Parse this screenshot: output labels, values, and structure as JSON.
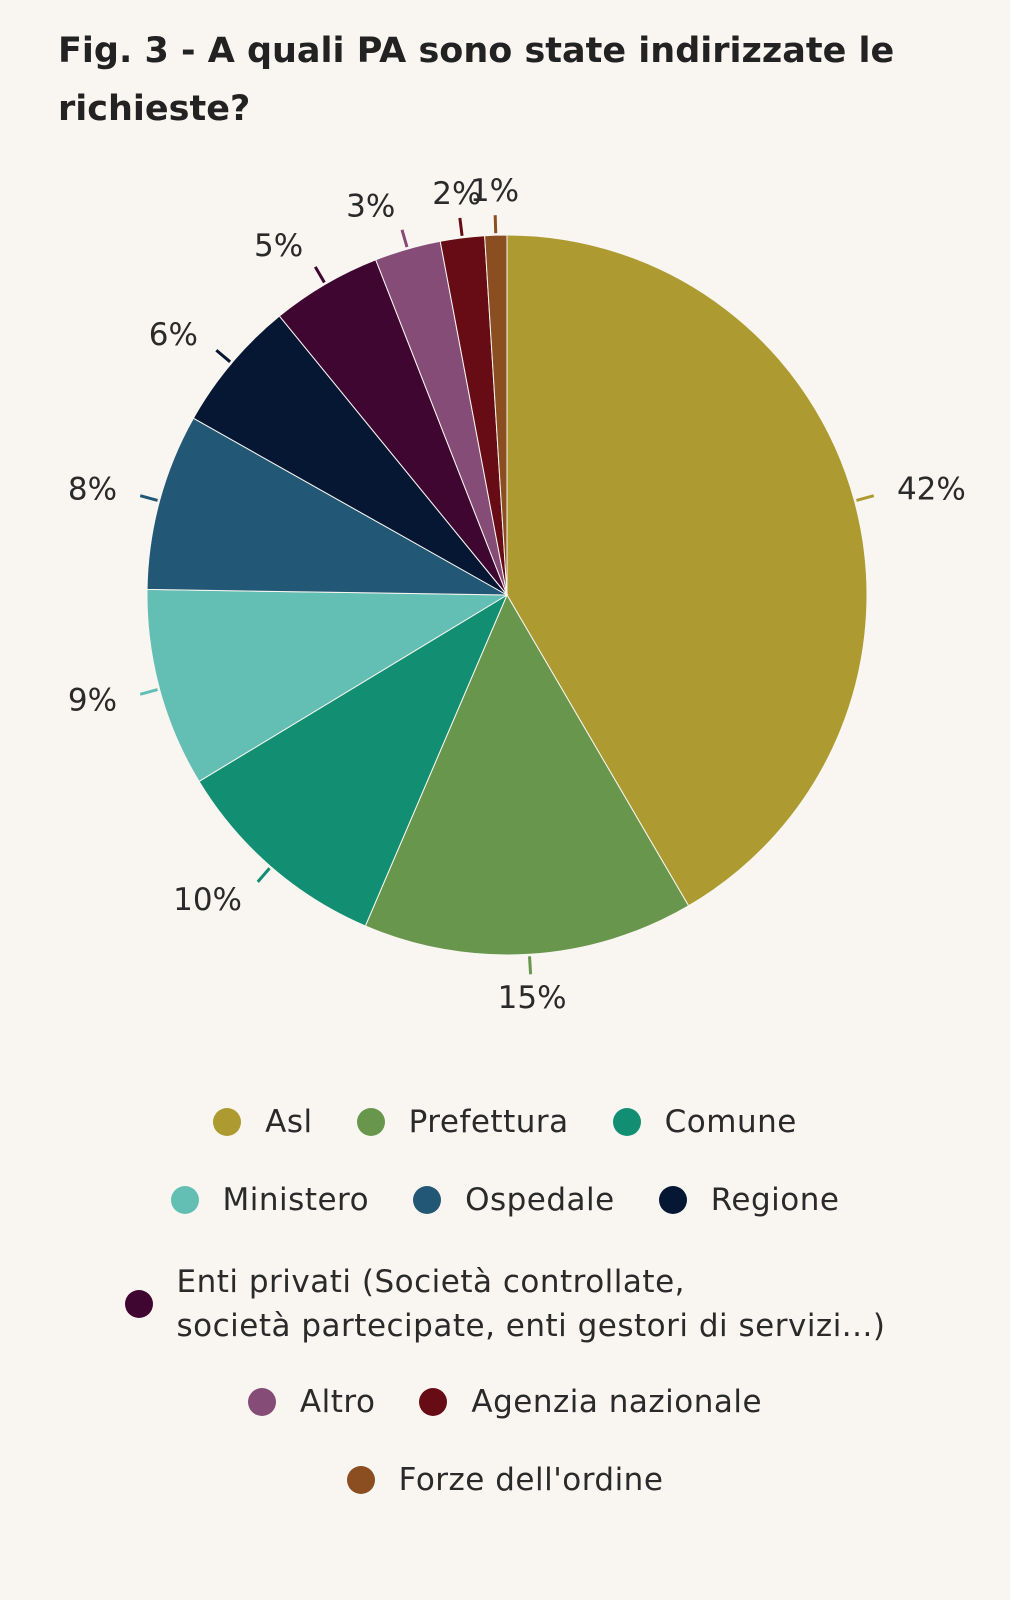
{
  "title": "Fig. 3 - A quali PA sono state indirizzate le richieste?",
  "chart_data": {
    "type": "pie",
    "title": "Fig. 3 - A quali PA sono state indirizzate le richieste?",
    "legend_position": "bottom",
    "slices": [
      {
        "name": "Asl",
        "value": 42,
        "label": "42%",
        "color": "#ad9a30"
      },
      {
        "name": "Prefettura",
        "value": 15,
        "label": "15%",
        "color": "#69964d"
      },
      {
        "name": "Comune",
        "value": 10,
        "label": "10%",
        "color": "#128f73"
      },
      {
        "name": "Ministero",
        "value": 9,
        "label": "9%",
        "color": "#63bfb3"
      },
      {
        "name": "Ospedale",
        "value": 8,
        "label": "8%",
        "color": "#225775"
      },
      {
        "name": "Regione",
        "value": 6,
        "label": "6%",
        "color": "#061733"
      },
      {
        "name": "Enti privati (Società controllate, società partecipate, enti gestori di servizi...)",
        "value": 5,
        "label": "5%",
        "color": "#3f0632"
      },
      {
        "name": "Altro",
        "value": 3,
        "label": "3%",
        "color": "#854c77"
      },
      {
        "name": "Agenzia nazionale",
        "value": 2,
        "label": "2%",
        "color": "#670c15"
      },
      {
        "name": "Forze dell'ordine",
        "value": 1,
        "label": "1%",
        "color": "#8a4e21"
      }
    ]
  },
  "legend": {
    "rows": [
      [
        "Asl",
        "Prefettura",
        "Comune"
      ],
      [
        "Ministero",
        "Ospedale",
        "Regione"
      ],
      [
        "Enti privati (Società controllate, società partecipate, enti gestori di servizi...)"
      ],
      [
        "Altro",
        "Agenzia nazionale"
      ],
      [
        "Forze dell'ordine"
      ]
    ],
    "enti_line1": "Enti privati (Società controllate,",
    "enti_line2": "società partecipate, enti gestori di servizi...)"
  }
}
